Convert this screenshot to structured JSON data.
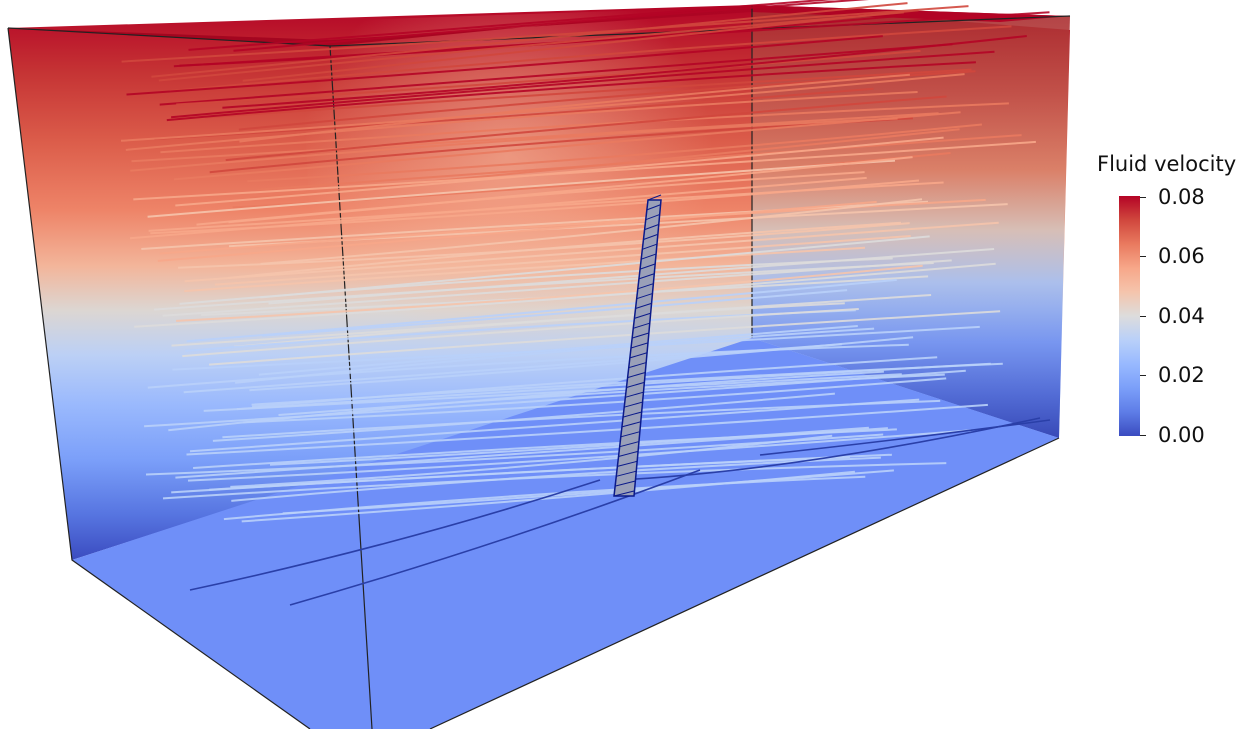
{
  "colorbar": {
    "title": "Fluid velocity",
    "ticks": [
      "0.08",
      "0.06",
      "0.04",
      "0.02",
      "0.00"
    ],
    "range": [
      0.0,
      0.08
    ],
    "colormap": [
      "#3b4cc0",
      "#5e7de7",
      "#7b9ff9",
      "#98b9ff",
      "#b9d0f9",
      "#dddcdc",
      "#f5c4ac",
      "#f7a789",
      "#e97a5f",
      "#d0473d",
      "#b40426"
    ]
  },
  "colors": {
    "floor": "#6f8ff8",
    "edge": "#222222",
    "cylinder": "#9aa0b8",
    "cylinder_mesh": "#0b1a8a"
  }
}
